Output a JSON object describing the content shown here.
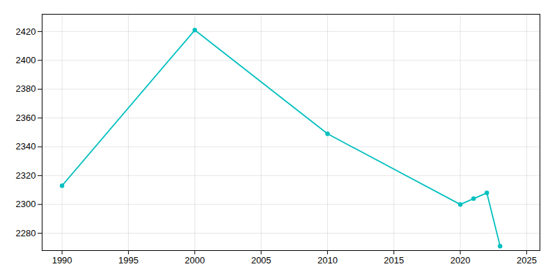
{
  "chart_data": {
    "type": "line",
    "x": [
      1990,
      2000,
      2010,
      2020,
      2021,
      2022,
      2023
    ],
    "values": [
      2313,
      2421,
      2349,
      2300,
      2304,
      2308,
      2271
    ],
    "color": "#00bfbf",
    "marker": "circle",
    "xlim": [
      1988.5,
      2026
    ],
    "xticks": [
      1990,
      1995,
      2000,
      2005,
      2010,
      2015,
      2020,
      2025
    ],
    "ylim": [
      2268,
      2432
    ],
    "yticks": [
      2280,
      2300,
      2320,
      2340,
      2360,
      2380,
      2400,
      2420
    ],
    "grid": true
  }
}
